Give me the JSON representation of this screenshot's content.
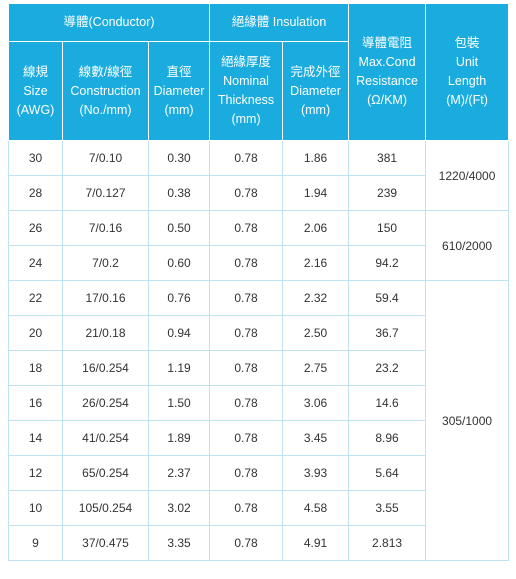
{
  "header": {
    "conductor_group": "導體(Conductor)",
    "insulation_group": "絕緣體 Insulation",
    "columns": [
      {
        "zh": "線規",
        "en1": "Size",
        "en2": "(AWG)"
      },
      {
        "zh": "線數/線徑",
        "en1": "Construction",
        "en2": "(No./mm)"
      },
      {
        "zh": "直徑",
        "en1": "Diameter",
        "en2": "(mm)"
      },
      {
        "zh": "絕緣厚度",
        "en1": "Nominal",
        "en2": "Thickness",
        "en3": "(mm)"
      },
      {
        "zh": "完成外徑",
        "en1": "Diameter",
        "en2": "(mm)"
      },
      {
        "zh": "導體電阻",
        "en1": "Max.Cond",
        "en2": "Resistance",
        "en3": "(Ω/KM)"
      },
      {
        "zh": "包裝",
        "en1": "Unit",
        "en2": "Length",
        "en3": "(M)/(Ft)"
      }
    ]
  },
  "rows": [
    {
      "size": "30",
      "construction": "7/0.10",
      "diameter": "0.30",
      "thickness": "0.78",
      "outer": "1.86",
      "resistance": "381"
    },
    {
      "size": "28",
      "construction": "7/0.127",
      "diameter": "0.38",
      "thickness": "0.78",
      "outer": "1.94",
      "resistance": "239"
    },
    {
      "size": "26",
      "construction": "7/0.16",
      "diameter": "0.50",
      "thickness": "0.78",
      "outer": "2.06",
      "resistance": "150"
    },
    {
      "size": "24",
      "construction": "7/0.2",
      "diameter": "0.60",
      "thickness": "0.78",
      "outer": "2.16",
      "resistance": "94.2"
    },
    {
      "size": "22",
      "construction": "17/0.16",
      "diameter": "0.76",
      "thickness": "0.78",
      "outer": "2.32",
      "resistance": "59.4"
    },
    {
      "size": "20",
      "construction": "21/0.18",
      "diameter": "0.94",
      "thickness": "0.78",
      "outer": "2.50",
      "resistance": "36.7"
    },
    {
      "size": "18",
      "construction": "16/0.254",
      "diameter": "1.19",
      "thickness": "0.78",
      "outer": "2.75",
      "resistance": "23.2"
    },
    {
      "size": "16",
      "construction": "26/0.254",
      "diameter": "1.50",
      "thickness": "0.78",
      "outer": "3.06",
      "resistance": "14.6"
    },
    {
      "size": "14",
      "construction": "41/0.254",
      "diameter": "1.89",
      "thickness": "0.78",
      "outer": "3.45",
      "resistance": "8.96"
    },
    {
      "size": "12",
      "construction": "65/0.254",
      "diameter": "2.37",
      "thickness": "0.78",
      "outer": "3.93",
      "resistance": "5.64"
    },
    {
      "size": "10",
      "construction": "105/0.254",
      "diameter": "3.02",
      "thickness": "0.78",
      "outer": "4.58",
      "resistance": "3.55"
    },
    {
      "size": "9",
      "construction": "37/0.475",
      "diameter": "3.35",
      "thickness": "0.78",
      "outer": "4.91",
      "resistance": "2.813"
    }
  ],
  "packaging": [
    "1220/4000",
    "610/2000",
    "305/1000"
  ],
  "colors": {
    "header_bg": "#1aacde",
    "header_text": "#ffffff",
    "border": "#bfe3f1",
    "cell_text": "#333333"
  }
}
